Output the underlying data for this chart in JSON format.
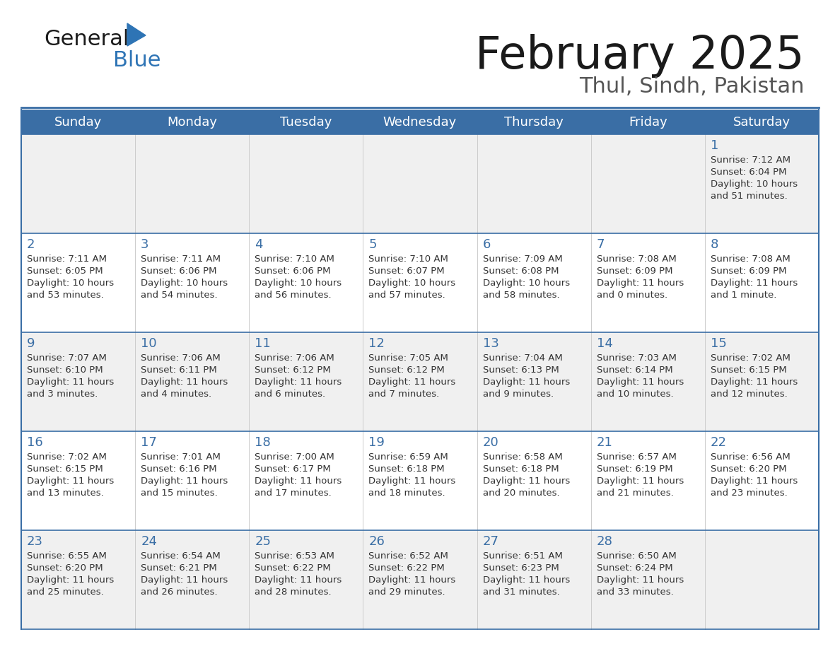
{
  "title": "February 2025",
  "subtitle": "Thul, Sindh, Pakistan",
  "header_bg": "#3a6ea5",
  "header_text_color": "#ffffff",
  "cell_bg_even": "#f0f0f0",
  "cell_bg_odd": "#ffffff",
  "cell_border_color": "#3a6ea5",
  "day_headers": [
    "Sunday",
    "Monday",
    "Tuesday",
    "Wednesday",
    "Thursday",
    "Friday",
    "Saturday"
  ],
  "title_color": "#1a1a1a",
  "subtitle_color": "#555555",
  "day_number_color": "#3a6ea5",
  "info_text_color": "#333333",
  "logo_general_color": "#1a1a1a",
  "logo_blue_color": "#2e74b5",
  "logo_triangle_color": "#2e74b5",
  "calendar": [
    [
      {
        "day": null
      },
      {
        "day": null
      },
      {
        "day": null
      },
      {
        "day": null
      },
      {
        "day": null
      },
      {
        "day": null
      },
      {
        "day": 1,
        "sunrise": "7:12 AM",
        "sunset": "6:04 PM",
        "daylight_line1": "Daylight: 10 hours",
        "daylight_line2": "and 51 minutes."
      }
    ],
    [
      {
        "day": 2,
        "sunrise": "7:11 AM",
        "sunset": "6:05 PM",
        "daylight_line1": "Daylight: 10 hours",
        "daylight_line2": "and 53 minutes."
      },
      {
        "day": 3,
        "sunrise": "7:11 AM",
        "sunset": "6:06 PM",
        "daylight_line1": "Daylight: 10 hours",
        "daylight_line2": "and 54 minutes."
      },
      {
        "day": 4,
        "sunrise": "7:10 AM",
        "sunset": "6:06 PM",
        "daylight_line1": "Daylight: 10 hours",
        "daylight_line2": "and 56 minutes."
      },
      {
        "day": 5,
        "sunrise": "7:10 AM",
        "sunset": "6:07 PM",
        "daylight_line1": "Daylight: 10 hours",
        "daylight_line2": "and 57 minutes."
      },
      {
        "day": 6,
        "sunrise": "7:09 AM",
        "sunset": "6:08 PM",
        "daylight_line1": "Daylight: 10 hours",
        "daylight_line2": "and 58 minutes."
      },
      {
        "day": 7,
        "sunrise": "7:08 AM",
        "sunset": "6:09 PM",
        "daylight_line1": "Daylight: 11 hours",
        "daylight_line2": "and 0 minutes."
      },
      {
        "day": 8,
        "sunrise": "7:08 AM",
        "sunset": "6:09 PM",
        "daylight_line1": "Daylight: 11 hours",
        "daylight_line2": "and 1 minute."
      }
    ],
    [
      {
        "day": 9,
        "sunrise": "7:07 AM",
        "sunset": "6:10 PM",
        "daylight_line1": "Daylight: 11 hours",
        "daylight_line2": "and 3 minutes."
      },
      {
        "day": 10,
        "sunrise": "7:06 AM",
        "sunset": "6:11 PM",
        "daylight_line1": "Daylight: 11 hours",
        "daylight_line2": "and 4 minutes."
      },
      {
        "day": 11,
        "sunrise": "7:06 AM",
        "sunset": "6:12 PM",
        "daylight_line1": "Daylight: 11 hours",
        "daylight_line2": "and 6 minutes."
      },
      {
        "day": 12,
        "sunrise": "7:05 AM",
        "sunset": "6:12 PM",
        "daylight_line1": "Daylight: 11 hours",
        "daylight_line2": "and 7 minutes."
      },
      {
        "day": 13,
        "sunrise": "7:04 AM",
        "sunset": "6:13 PM",
        "daylight_line1": "Daylight: 11 hours",
        "daylight_line2": "and 9 minutes."
      },
      {
        "day": 14,
        "sunrise": "7:03 AM",
        "sunset": "6:14 PM",
        "daylight_line1": "Daylight: 11 hours",
        "daylight_line2": "and 10 minutes."
      },
      {
        "day": 15,
        "sunrise": "7:02 AM",
        "sunset": "6:15 PM",
        "daylight_line1": "Daylight: 11 hours",
        "daylight_line2": "and 12 minutes."
      }
    ],
    [
      {
        "day": 16,
        "sunrise": "7:02 AM",
        "sunset": "6:15 PM",
        "daylight_line1": "Daylight: 11 hours",
        "daylight_line2": "and 13 minutes."
      },
      {
        "day": 17,
        "sunrise": "7:01 AM",
        "sunset": "6:16 PM",
        "daylight_line1": "Daylight: 11 hours",
        "daylight_line2": "and 15 minutes."
      },
      {
        "day": 18,
        "sunrise": "7:00 AM",
        "sunset": "6:17 PM",
        "daylight_line1": "Daylight: 11 hours",
        "daylight_line2": "and 17 minutes."
      },
      {
        "day": 19,
        "sunrise": "6:59 AM",
        "sunset": "6:18 PM",
        "daylight_line1": "Daylight: 11 hours",
        "daylight_line2": "and 18 minutes."
      },
      {
        "day": 20,
        "sunrise": "6:58 AM",
        "sunset": "6:18 PM",
        "daylight_line1": "Daylight: 11 hours",
        "daylight_line2": "and 20 minutes."
      },
      {
        "day": 21,
        "sunrise": "6:57 AM",
        "sunset": "6:19 PM",
        "daylight_line1": "Daylight: 11 hours",
        "daylight_line2": "and 21 minutes."
      },
      {
        "day": 22,
        "sunrise": "6:56 AM",
        "sunset": "6:20 PM",
        "daylight_line1": "Daylight: 11 hours",
        "daylight_line2": "and 23 minutes."
      }
    ],
    [
      {
        "day": 23,
        "sunrise": "6:55 AM",
        "sunset": "6:20 PM",
        "daylight_line1": "Daylight: 11 hours",
        "daylight_line2": "and 25 minutes."
      },
      {
        "day": 24,
        "sunrise": "6:54 AM",
        "sunset": "6:21 PM",
        "daylight_line1": "Daylight: 11 hours",
        "daylight_line2": "and 26 minutes."
      },
      {
        "day": 25,
        "sunrise": "6:53 AM",
        "sunset": "6:22 PM",
        "daylight_line1": "Daylight: 11 hours",
        "daylight_line2": "and 28 minutes."
      },
      {
        "day": 26,
        "sunrise": "6:52 AM",
        "sunset": "6:22 PM",
        "daylight_line1": "Daylight: 11 hours",
        "daylight_line2": "and 29 minutes."
      },
      {
        "day": 27,
        "sunrise": "6:51 AM",
        "sunset": "6:23 PM",
        "daylight_line1": "Daylight: 11 hours",
        "daylight_line2": "and 31 minutes."
      },
      {
        "day": 28,
        "sunrise": "6:50 AM",
        "sunset": "6:24 PM",
        "daylight_line1": "Daylight: 11 hours",
        "daylight_line2": "and 33 minutes."
      },
      {
        "day": null
      }
    ]
  ]
}
